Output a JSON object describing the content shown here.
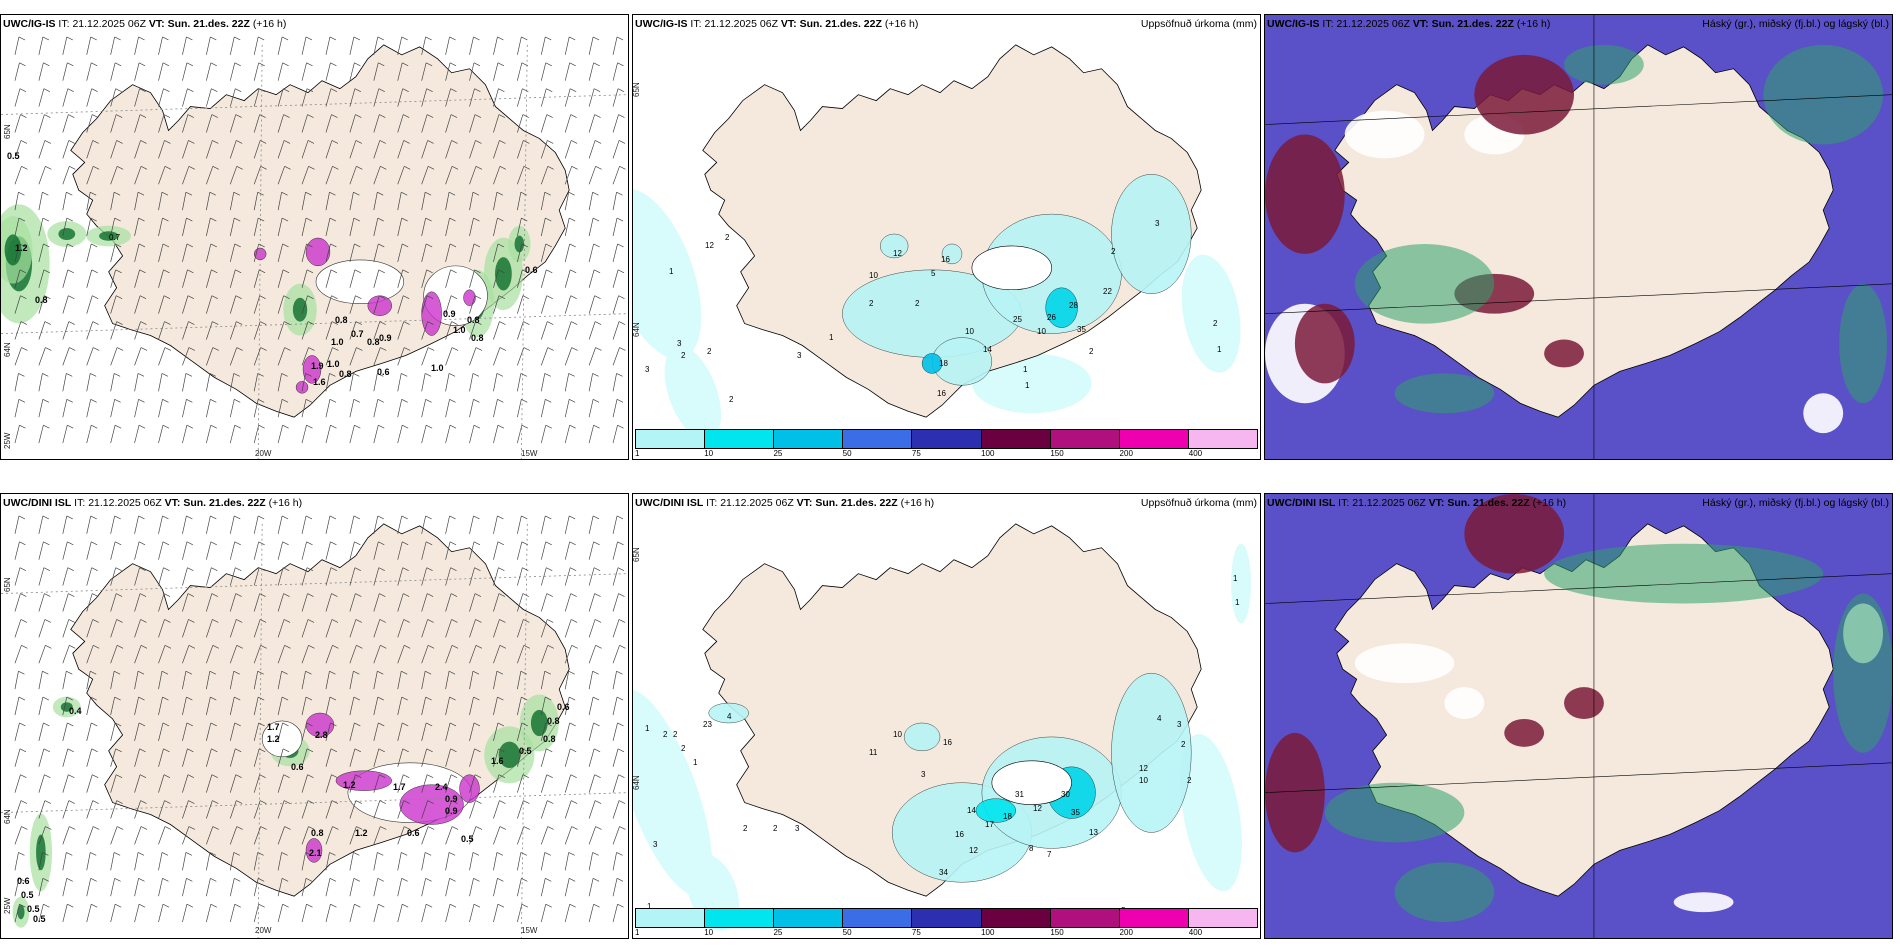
{
  "panels": [
    {
      "model": "UWC/IG-IS",
      "it_label": "IT:",
      "it_value": "21.12.2025 06Z",
      "vt_label": "VT:",
      "vt_value": "Sun. 21.des. 22Z",
      "lead": "(+16 h)",
      "right_title": "",
      "lat_labels": [
        "65N",
        "64N",
        "25W"
      ],
      "lon_labels": [
        "20W",
        "15W"
      ],
      "markers": [
        "0.5",
        "1.2",
        "0.8",
        "0.7",
        "1.0",
        "0.8",
        "0.7",
        "1.0",
        "0.8",
        "0.9",
        "0.8",
        "0.6",
        "1.0",
        "1.9",
        "1.6",
        "0.8",
        "0.9",
        "1.0",
        "0.8",
        "0.6"
      ]
    },
    {
      "model": "UWC/IG-IS",
      "it_label": "IT:",
      "it_value": "21.12.2025 06Z",
      "vt_label": "VT:",
      "vt_value": "Sun. 21.des. 22Z",
      "lead": "(+16 h)",
      "right_title": "Uppsöfnuð úrkoma (mm)",
      "lat_labels": [
        "65N",
        "64N"
      ],
      "markers": [
        "12",
        "2",
        "1",
        "3",
        "2",
        "3",
        "2",
        "2",
        "3",
        "1",
        "12",
        "16",
        "10",
        "5",
        "2",
        "2",
        "10",
        "14",
        "18",
        "16",
        "10",
        "25",
        "26",
        "35",
        "28",
        "22",
        "2",
        "1",
        "1",
        "2",
        "3",
        "2",
        "1"
      ],
      "colorbar": {
        "colors": [
          "#b3f5f7",
          "#00e5ee",
          "#00c0e8",
          "#3a6de6",
          "#2b2fb0",
          "#6a0040",
          "#b0107e",
          "#ee00b0",
          "#f6b6f0"
        ],
        "labels": [
          "1",
          "10",
          "25",
          "50",
          "75",
          "100",
          "150",
          "200",
          "400"
        ]
      }
    },
    {
      "model": "UWC/IG-IS",
      "it_label": "IT:",
      "it_value": "21.12.2025 06Z",
      "vt_label": "VT:",
      "vt_value": "Sun. 21.des. 22Z",
      "lead": "(+16 h)",
      "right_title": "Háský (gr.), miðský (fj.bl.) og lágský (bl.)"
    },
    {
      "model": "UWC/DINI ISL",
      "it_label": "IT:",
      "it_value": "21.12.2025 06Z",
      "vt_label": "VT:",
      "vt_value": "Sun. 21.des. 22Z",
      "lead": "(+16 h)",
      "right_title": "",
      "lat_labels": [
        "65N",
        "64N",
        "25W"
      ],
      "lon_labels": [
        "20W",
        "15W"
      ],
      "markers": [
        "0.4",
        "1.7",
        "1.2",
        "2.8",
        "0.6",
        "1.2",
        "1.7",
        "2.4",
        "0.9",
        "1.6",
        "0.8",
        "0.5",
        "0.8",
        "0.6",
        "1.2",
        "0.8",
        "2.1",
        "0.6",
        "0.5",
        "0.5",
        "0.5",
        "0.9",
        "0.6",
        "0.5"
      ]
    },
    {
      "model": "UWC/DINI ISL",
      "it_label": "IT:",
      "it_value": "21.12.2025 06Z",
      "vt_label": "VT:",
      "vt_value": "Sun. 21.des. 22Z",
      "lead": "(+16 h)",
      "right_title": "Uppsöfnuð úrkoma (mm)",
      "lat_labels": [
        "65N",
        "64N"
      ],
      "markers": [
        "23",
        "4",
        "2",
        "2",
        "1",
        "2",
        "1",
        "10",
        "11",
        "16",
        "3",
        "14",
        "17",
        "18",
        "31",
        "12",
        "30",
        "35",
        "13",
        "16",
        "34",
        "12",
        "2",
        "2",
        "3",
        "8",
        "7",
        "12",
        "10",
        "4",
        "3",
        "2",
        "2",
        "1",
        "1",
        "2",
        "1",
        "3"
      ],
      "colorbar": {
        "colors": [
          "#b3f5f7",
          "#00e5ee",
          "#00c0e8",
          "#3a6de6",
          "#2b2fb0",
          "#6a0040",
          "#b0107e",
          "#ee00b0",
          "#f6b6f0"
        ],
        "labels": [
          "1",
          "10",
          "25",
          "50",
          "75",
          "100",
          "150",
          "200",
          "400"
        ]
      }
    },
    {
      "model": "UWC/DINI ISL",
      "it_label": "IT:",
      "it_value": "21.12.2025 06Z",
      "vt_label": "VT:",
      "vt_value": "Sun. 21.des. 22Z",
      "lead": "(+16 h)",
      "right_title": "Háský (gr.), miðský (fj.bl.) og lágský (bl.)"
    }
  ],
  "colors": {
    "land": "#f4e9dc",
    "land_wind": "#eadfd2",
    "green_light": "#a6dfa0",
    "green_dark": "#0b6b2a",
    "magenta": "#cc33cc",
    "cloud_high": "#2fa36b",
    "cloud_mid": "#7a1a3a",
    "cloud_low": "#5a50c8"
  }
}
